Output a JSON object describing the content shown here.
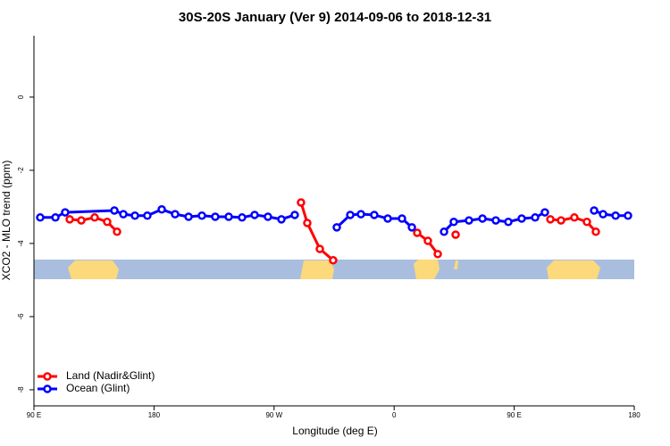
{
  "chart_data": {
    "type": "line",
    "title": "30S-20S January (Ver 9)   2014-09-06 to 2018-12-31",
    "x_label": "Longitude (deg E)",
    "y_label": "XCO2 - MLO trend (ppm)",
    "xlim": [
      90,
      540
    ],
    "xticks": [
      {
        "value": 90,
        "label": "90 E"
      },
      {
        "value": 180,
        "label": "180"
      },
      {
        "value": 270,
        "label": "90 W"
      },
      {
        "value": 360,
        "label": "0"
      },
      {
        "value": 450,
        "label": "90 E"
      },
      {
        "value": 540,
        "label": "180"
      }
    ],
    "ylim": [
      -8.44,
      1.68
    ],
    "yticks": [
      0,
      -2,
      -4,
      -6,
      -8
    ],
    "legend": "bottom-left",
    "series": [
      {
        "name": "Land (Nadir&Glint)",
        "color": "#ff0000",
        "x": [
          116.8,
          125.5,
          135.5,
          144.9,
          152.3,
          null,
          290.2,
          294.9,
          304.3,
          314.3,
          null,
          377.3,
          385.3,
          392.7,
          null,
          406.1,
          null,
          477.1,
          485.1,
          495.1,
          504.5,
          511.2
        ],
        "values": [
          -3.34,
          -3.37,
          -3.29,
          -3.41,
          -3.68,
          null,
          -2.88,
          -3.44,
          -4.15,
          -4.46,
          null,
          -3.71,
          -3.93,
          -4.29,
          null,
          -3.76,
          null,
          -3.34,
          -3.37,
          -3.29,
          -3.41,
          -3.68
        ]
      },
      {
        "name": "Ocean (Glint)",
        "color": "#0000ff",
        "x": [
          94.7,
          106.1,
          113.4,
          150.3,
          157.0,
          165.7,
          175.0,
          185.8,
          195.8,
          205.9,
          215.9,
          225.9,
          236.0,
          246.0,
          255.4,
          265.4,
          275.5,
          285.5,
          null,
          317.0,
          327.1,
          335.1,
          345.1,
          355.2,
          365.9,
          373.3,
          null,
          397.4,
          404.7,
          416.1,
          426.2,
          436.2,
          445.6,
          455.6,
          465.7,
          473.0,
          null,
          509.9,
          516.6,
          526.0,
          535.3
        ],
        "values": [
          -3.29,
          -3.29,
          -3.15,
          -3.1,
          -3.2,
          -3.24,
          -3.24,
          -3.07,
          -3.2,
          -3.27,
          -3.24,
          -3.27,
          -3.27,
          -3.29,
          -3.22,
          -3.27,
          -3.34,
          -3.22,
          null,
          -3.56,
          -3.22,
          -3.2,
          -3.22,
          -3.32,
          -3.32,
          -3.56,
          null,
          -3.68,
          -3.41,
          -3.37,
          -3.32,
          -3.37,
          -3.41,
          -3.32,
          -3.29,
          -3.15,
          null,
          -3.1,
          -3.2,
          -3.24,
          -3.24
        ]
      }
    ]
  }
}
